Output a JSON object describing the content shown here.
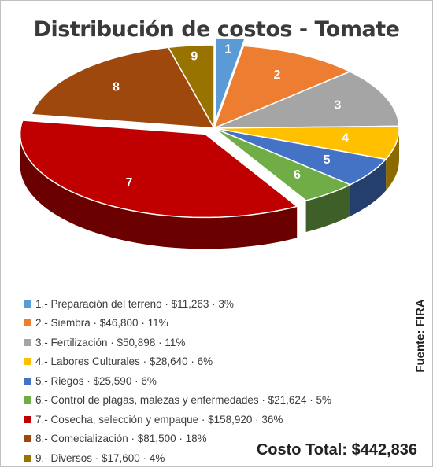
{
  "chart_data": {
    "type": "pie",
    "title": "Distribución de costos - Tomate",
    "source": "Fuente: FIRA",
    "total_label": "Costo Total: $442,836",
    "legend_position": "bottom",
    "slice_labels": [
      "1",
      "2",
      "3",
      "4",
      "5",
      "6",
      "7",
      "8",
      "9"
    ],
    "categories": [
      "1.- Preparación del terreno · $11,263 · 3%",
      "2.- Siembra · $46,800 · 11%",
      "3.- Fertilización · $50,898 · 11%",
      "4.- Labores Culturales · $28,640 · 6%",
      "5.- Riegos · $25,590 · 6%",
      "6.- Control de plagas, malezas y enfermedades · $21,624 · 5%",
      "7.- Cosecha, selección y empaque · $158,920 · 36%",
      "8.- Comecialización · $81,500 · 18%",
      "9.- Diversos · $17,600 · 4%"
    ],
    "values": [
      11263,
      46800,
      50898,
      28640,
      25590,
      21624,
      158920,
      81500,
      17600
    ],
    "colors": [
      "#5b9bd5",
      "#ed7d31",
      "#a5a5a5",
      "#ffc000",
      "#4472c4",
      "#70ad47",
      "#c00000",
      "#9e480e",
      "#997300"
    ],
    "exploded": [
      1,
      7
    ]
  }
}
